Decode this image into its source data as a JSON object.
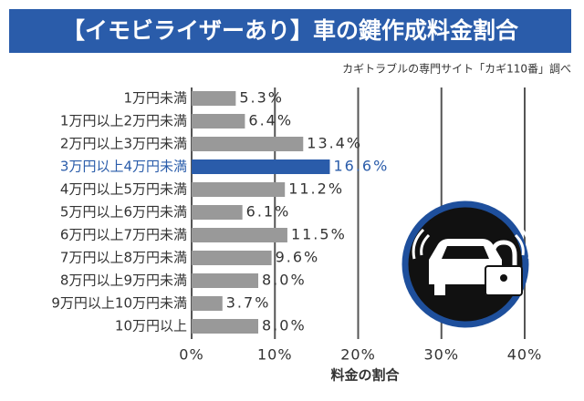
{
  "chart_data": {
    "type": "bar",
    "orientation": "horizontal",
    "title": "【イモビライザーあり】車の鍵作成料金割合",
    "subtitle": "カギトラブルの専門サイト「カギ110番」調べ",
    "xlabel": "料金の割合",
    "categories": [
      "1万円未満",
      "1万円以上2万円未満",
      "2万円以上3万円未満",
      "3万円以上4万円未満",
      "4万円以上5万円未満",
      "5万円以上6万円未満",
      "6万円以上7万円未満",
      "7万円以上8万円未満",
      "8万円以上9万円未満",
      "9万円以上10万円未満",
      "10万円以上"
    ],
    "values": [
      5.3,
      6.4,
      13.4,
      16.6,
      11.2,
      6.1,
      11.5,
      9.6,
      8.0,
      3.7,
      8.0
    ],
    "value_labels": [
      "5.3%",
      "6.4%",
      "13.4%",
      "16.6%",
      "11.2%",
      "6.1%",
      "11.5%",
      "9.6%",
      "8.0%",
      "3.7%",
      "8.0%"
    ],
    "colors": [
      "#999999",
      "#999999",
      "#999999",
      "#2a5caa",
      "#999999",
      "#999999",
      "#999999",
      "#999999",
      "#999999",
      "#999999",
      "#999999"
    ],
    "label_colors": [
      "#333333",
      "#333333",
      "#333333",
      "#2a5caa",
      "#333333",
      "#333333",
      "#333333",
      "#333333",
      "#333333",
      "#333333",
      "#333333"
    ],
    "xlim": [
      0,
      40
    ],
    "xticks": [
      {
        "value": 0,
        "label": "0%"
      },
      {
        "value": 10,
        "label": "10%"
      },
      {
        "value": 20,
        "label": "20%"
      },
      {
        "value": 30,
        "label": "30%"
      },
      {
        "value": 40,
        "label": "40%"
      }
    ],
    "grid": true
  }
}
